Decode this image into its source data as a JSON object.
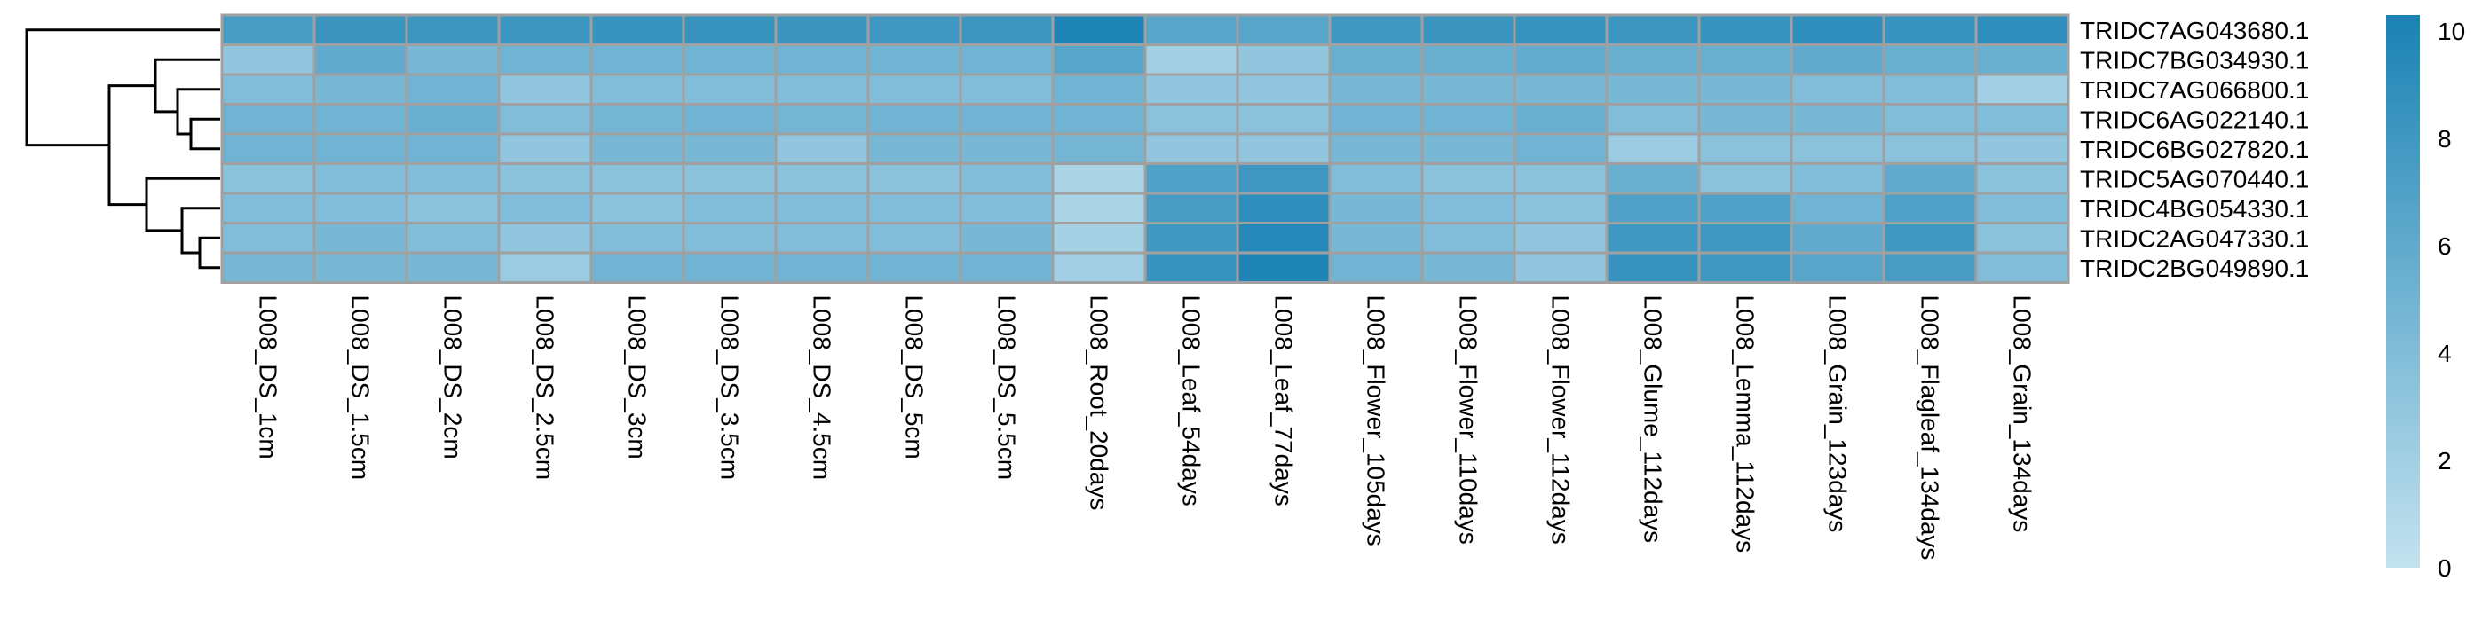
{
  "chart_data": {
    "type": "heatmap",
    "title": "",
    "xlabel": "",
    "ylabel": "",
    "rows": [
      "TRIDC7AG043680.1",
      "TRIDC7BG034930.1",
      "TRIDC7AG066800.1",
      "TRIDC6AG022140.1",
      "TRIDC6BG027820.1",
      "TRIDC5AG070440.1",
      "TRIDC4BG054330.1",
      "TRIDC2AG047330.1",
      "TRIDC2BG049890.1"
    ],
    "columns": [
      "L008_DS_1cm",
      "L008_DS_1.5cm",
      "L008_DS_2cm",
      "L008_DS_2.5cm",
      "L008_DS_3cm",
      "L008_DS_3.5cm",
      "L008_DS_4.5cm",
      "L008_DS_5cm",
      "L008_DS_5.5cm",
      "L008_Root_20days",
      "L008_Leaf_54days",
      "L008_Leaf_77days",
      "L008_Flower_105days",
      "L008_Flower_110days",
      "L008_Flower_112days",
      "L008_Glume_112days",
      "L008_Lemma_112days",
      "L008_Grain_123days",
      "L008_Flagleaf_134days",
      "L008_Grain_134days"
    ],
    "values": [
      [
        7.5,
        8.3,
        8.2,
        8.2,
        8.5,
        8.5,
        8.3,
        8.0,
        8.2,
        10.0,
        6.5,
        6.5,
        8.0,
        8.3,
        8.5,
        8.2,
        8.5,
        9.0,
        8.5,
        9.0
      ],
      [
        3.0,
        6.0,
        4.5,
        5.0,
        5.0,
        5.0,
        5.0,
        5.0,
        5.0,
        6.5,
        2.0,
        3.0,
        5.5,
        5.5,
        5.8,
        5.5,
        5.5,
        6.0,
        5.5,
        5.5
      ],
      [
        4.0,
        4.5,
        5.0,
        3.0,
        4.0,
        4.0,
        4.0,
        4.0,
        4.0,
        5.0,
        3.0,
        3.0,
        4.5,
        4.5,
        4.5,
        4.5,
        4.5,
        4.0,
        4.0,
        2.0
      ],
      [
        5.0,
        5.0,
        5.5,
        4.0,
        4.8,
        5.0,
        4.8,
        5.0,
        5.0,
        5.0,
        3.5,
        3.5,
        5.0,
        5.0,
        5.5,
        4.0,
        4.5,
        4.5,
        4.0,
        4.0
      ],
      [
        5.0,
        5.0,
        5.0,
        3.0,
        4.5,
        4.5,
        3.0,
        4.5,
        4.5,
        4.8,
        3.0,
        3.0,
        4.5,
        4.5,
        5.0,
        2.5,
        3.5,
        3.5,
        3.5,
        3.0
      ],
      [
        3.5,
        4.0,
        4.0,
        3.5,
        3.5,
        3.5,
        3.5,
        3.5,
        4.0,
        1.5,
        7.0,
        8.0,
        4.0,
        3.5,
        3.5,
        5.5,
        3.5,
        4.0,
        6.0,
        3.5
      ],
      [
        4.0,
        4.0,
        3.5,
        4.0,
        3.5,
        4.0,
        4.0,
        4.0,
        4.0,
        1.5,
        7.5,
        9.0,
        4.5,
        4.0,
        3.5,
        7.0,
        7.0,
        5.0,
        7.0,
        4.0
      ],
      [
        4.0,
        4.5,
        4.0,
        3.0,
        4.0,
        4.0,
        4.0,
        4.0,
        4.5,
        1.8,
        8.0,
        9.5,
        4.5,
        4.0,
        3.0,
        8.0,
        8.0,
        6.0,
        8.0,
        3.5
      ],
      [
        4.5,
        4.5,
        4.5,
        2.5,
        5.0,
        5.0,
        5.0,
        5.0,
        5.0,
        2.0,
        8.5,
        10.0,
        5.0,
        4.5,
        3.0,
        8.5,
        8.0,
        6.5,
        7.5,
        4.0
      ]
    ],
    "color_scale": {
      "min": 0,
      "max": 10.3,
      "low_color": "#c3e2ef",
      "high_color": "#1a82b4",
      "ticks": [
        0,
        2,
        4,
        6,
        8,
        10
      ]
    },
    "cell_border_color": "#a0a0a0",
    "row_dendrogram": true,
    "legend_position": "right"
  }
}
